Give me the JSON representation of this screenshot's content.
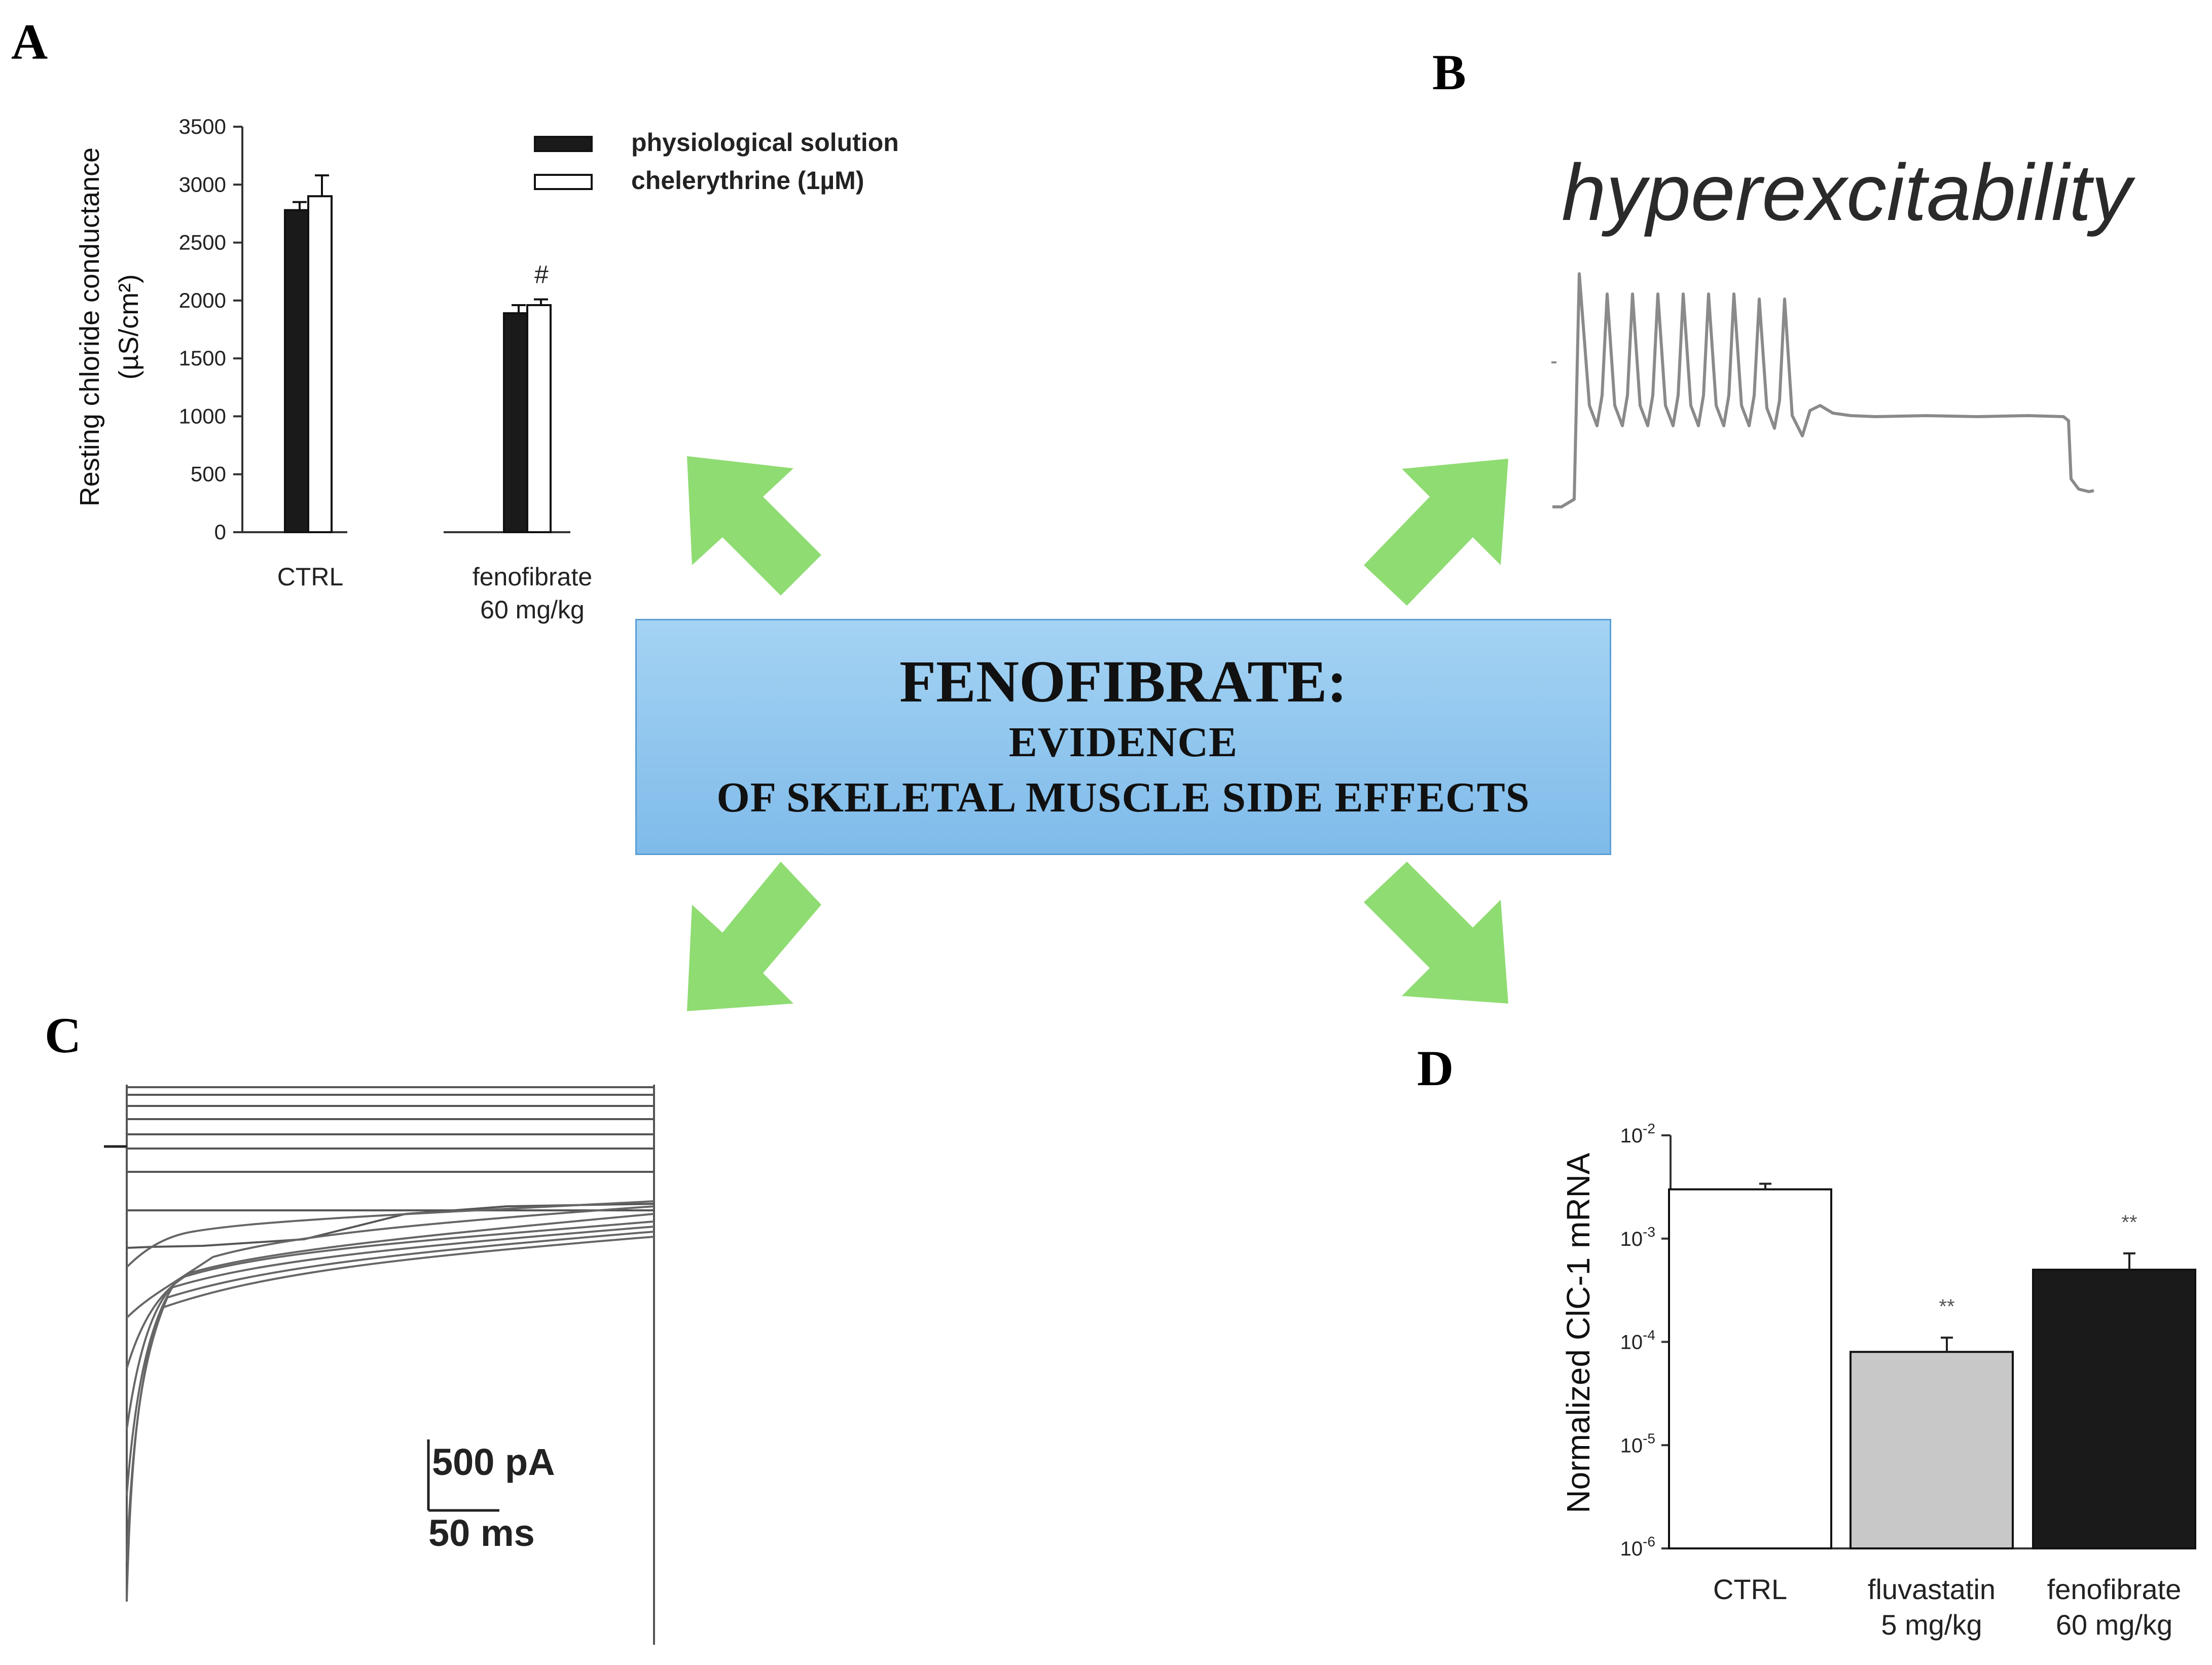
{
  "center": {
    "title": "FENOFIBRATE:",
    "line1": "EVIDENCE",
    "line2": "OF SKELETAL MUSCLE SIDE EFFECTS"
  },
  "colors": {
    "arrow": "#8fdc72",
    "box": "#8ec6ee",
    "dark_bar": "#1a1a1a",
    "grey_bar": "#c8c8c8"
  },
  "panel_a": {
    "letter": "A",
    "legend": [
      "physiological solution",
      "chelerythrine (1µM)"
    ],
    "ylabel_line1": "Resting chloride conductance",
    "ylabel_line2": "(µS/cm²)",
    "annotation": "#",
    "chart_data": {
      "type": "bar",
      "categories": [
        "CTRL",
        "fenofibrate 60 mg/kg"
      ],
      "category_lines": [
        [
          "CTRL"
        ],
        [
          "fenofibrate",
          "60 mg/kg"
        ]
      ],
      "series": [
        {
          "name": "physiological solution",
          "values": [
            2780,
            1890
          ],
          "errors": [
            70,
            70
          ]
        },
        {
          "name": "chelerythrine (1µM)",
          "values": [
            2900,
            1960
          ],
          "errors": [
            180,
            50
          ]
        }
      ],
      "ylim": [
        0,
        3500
      ],
      "yticks": [
        "0",
        "500",
        "1000",
        "1500",
        "2000",
        "2500",
        "3000",
        "3500"
      ]
    }
  },
  "panel_b": {
    "letter": "B",
    "label": "hyperexcitability"
  },
  "panel_c": {
    "letter": "C",
    "scale_current": "500 pA",
    "scale_time": "50 ms"
  },
  "panel_d": {
    "letter": "D",
    "ylabel": "Normalized ClC-1 mRNA",
    "annotations": [
      "**",
      "**"
    ],
    "chart_data": {
      "type": "bar",
      "scale": "log",
      "categories": [
        "CTRL",
        "fluvastatin 5 mg/kg",
        "fenofibrate 60 mg/kg"
      ],
      "category_lines": [
        [
          "CTRL"
        ],
        [
          "fluvastatin",
          "5 mg/kg"
        ],
        [
          "fenofibrate",
          "60 mg/kg"
        ]
      ],
      "values": [
        0.003,
        8e-05,
        0.0005
      ],
      "errors_upper": [
        0.0034,
        0.00011,
        0.00072
      ],
      "ylim": [
        1e-06,
        0.01
      ],
      "ytick_bases": [
        "10",
        "10",
        "10",
        "10",
        "10"
      ],
      "ytick_exps": [
        "-6",
        "-5",
        "-4",
        "-3",
        "-2"
      ]
    }
  }
}
